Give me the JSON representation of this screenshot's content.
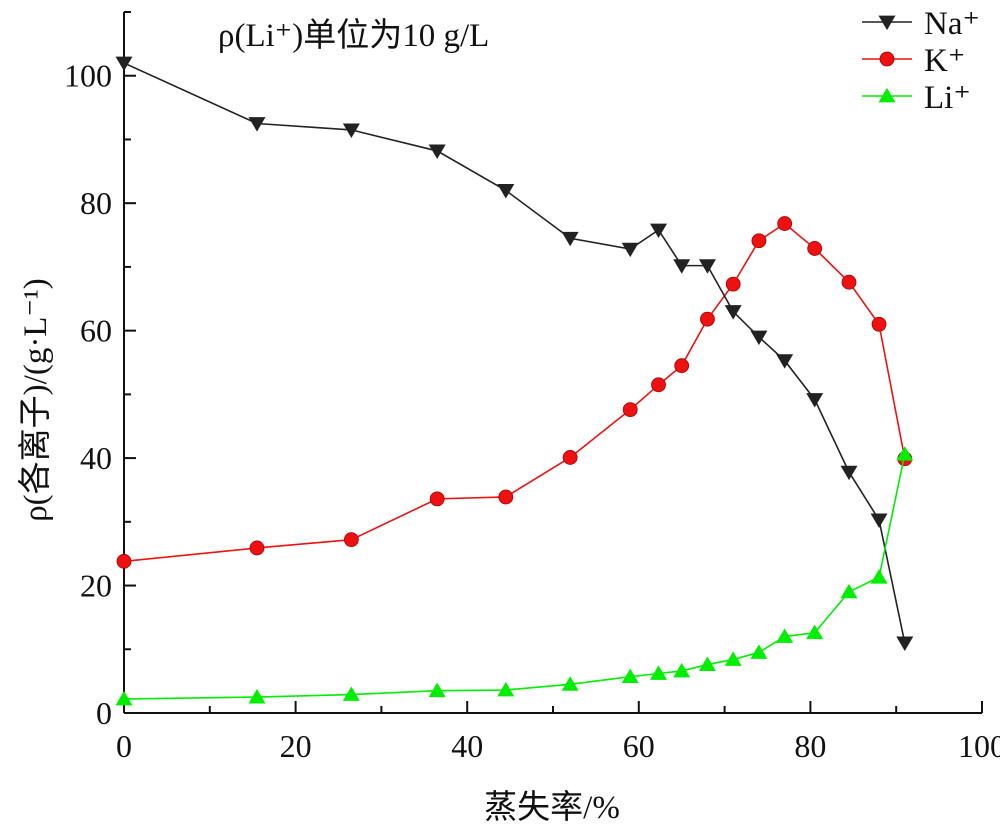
{
  "chart_data": {
    "type": "line",
    "annotation": "ρ(Li⁺)单位为10 g/L",
    "xlabel": "蒸失率/%",
    "ylabel": "ρ(各离子)/(g·L⁻¹)",
    "xlim": [
      0,
      100
    ],
    "ylim": [
      0,
      110
    ],
    "xticks": [
      0,
      20,
      40,
      60,
      80,
      100
    ],
    "yticks": [
      0,
      20,
      40,
      60,
      80,
      100
    ],
    "xtick_labels": [
      "0",
      "20",
      "40",
      "60",
      "80",
      "100"
    ],
    "ytick_labels": [
      "0",
      "20",
      "40",
      "60",
      "80",
      "100"
    ],
    "grid": false,
    "legend_position": "top-right",
    "series": [
      {
        "name": "Na⁺",
        "color": "#222222",
        "marker": "triangle-down",
        "x": [
          0,
          15.5,
          26.5,
          36.5,
          44.5,
          52,
          59,
          62.3,
          65,
          68,
          71,
          74,
          77,
          80.5,
          84.5,
          88,
          91
        ],
        "y": [
          102,
          92.5,
          91.5,
          88.2,
          82,
          74.5,
          72.8,
          75.8,
          70.2,
          70.2,
          63,
          59,
          55.3,
          49.2,
          37.8,
          30.3,
          11
        ]
      },
      {
        "name": "K⁺",
        "color": "#ee1111",
        "marker": "circle",
        "x": [
          0,
          15.5,
          26.5,
          36.5,
          44.5,
          52,
          59,
          62.3,
          65,
          68,
          71,
          74,
          77,
          80.5,
          84.5,
          88,
          91
        ],
        "y": [
          23.8,
          25.9,
          27.2,
          33.6,
          33.9,
          40.1,
          47.6,
          51.5,
          54.5,
          61.8,
          67.3,
          74.1,
          76.8,
          72.9,
          67.6,
          61,
          39.9
        ]
      },
      {
        "name": "Li⁺",
        "color": "#00ee00",
        "marker": "triangle-up",
        "x": [
          0,
          15.5,
          26.5,
          36.5,
          44.5,
          52,
          59,
          62.3,
          65,
          68,
          71,
          74,
          77,
          80.5,
          84.5,
          88,
          91
        ],
        "y": [
          2.2,
          2.5,
          2.9,
          3.5,
          3.6,
          4.5,
          5.7,
          6.2,
          6.6,
          7.6,
          8.4,
          9.5,
          12,
          12.6,
          19,
          21.3,
          40.6
        ]
      }
    ]
  }
}
